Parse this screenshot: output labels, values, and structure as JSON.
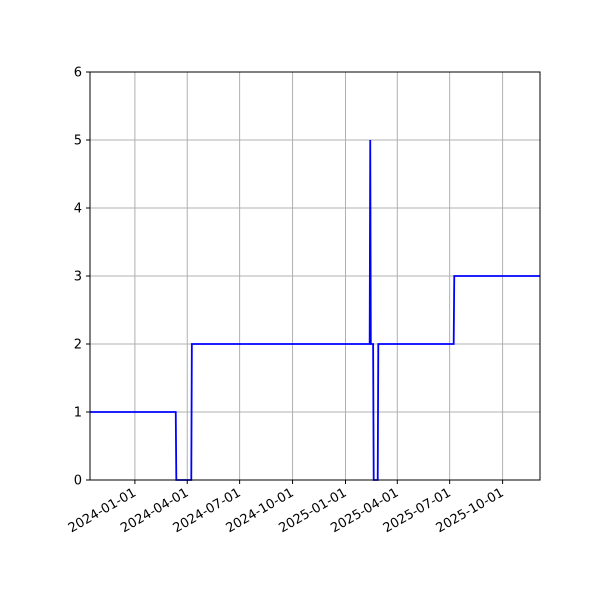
{
  "chart_data": {
    "type": "line",
    "x_axis_type": "date",
    "xlim": [
      "2023-10-15",
      "2025-12-05"
    ],
    "ylim": [
      0,
      6
    ],
    "grid": true,
    "x_ticks": [
      "2024-01-01",
      "2024-04-01",
      "2024-07-01",
      "2024-10-01",
      "2025-01-01",
      "2025-04-01",
      "2025-07-01",
      "2025-10-01"
    ],
    "y_ticks": [
      0,
      1,
      2,
      3,
      4,
      5,
      6
    ],
    "series": [
      {
        "color": "#0000ff",
        "points": [
          [
            "2023-10-15",
            1
          ],
          [
            "2024-03-12",
            1
          ],
          [
            "2024-03-13",
            0
          ],
          [
            "2024-04-08",
            0
          ],
          [
            "2024-04-09",
            2
          ],
          [
            "2025-02-12",
            2
          ],
          [
            "2025-02-13",
            5
          ],
          [
            "2025-02-14",
            2
          ],
          [
            "2025-02-18",
            2
          ],
          [
            "2025-02-19",
            0
          ],
          [
            "2025-02-26",
            0
          ],
          [
            "2025-02-27",
            2
          ],
          [
            "2025-07-08",
            2
          ],
          [
            "2025-07-09",
            3
          ],
          [
            "2025-12-05",
            3
          ]
        ]
      }
    ]
  }
}
